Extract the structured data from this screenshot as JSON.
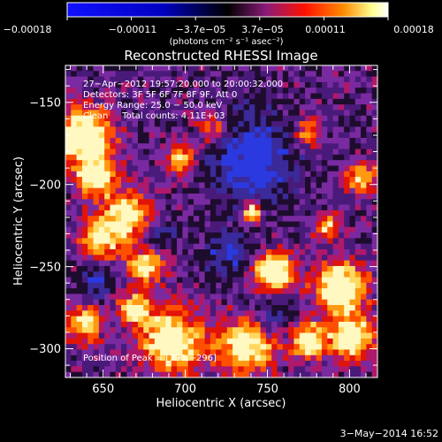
{
  "colorbar": {
    "tick_labels": [
      "−0.00018",
      "−0.00011",
      "−3.7e−05",
      "3.7e−05",
      "0.00011",
      "0.00018"
    ],
    "units_label": "(photons cm⁻² s⁻¹ asec⁻²)"
  },
  "plot": {
    "title": "Reconstructed RHESSI Image",
    "xlabel": "Heliocentric X (arcsec)",
    "ylabel": "Heliocentric Y (arcsec)",
    "x_ticks": [
      "650",
      "700",
      "750",
      "800"
    ],
    "y_ticks": [
      "−150",
      "−200",
      "−250",
      "−300"
    ],
    "xlim": [
      627,
      817
    ],
    "ylim": [
      -320,
      -130
    ]
  },
  "annotations": {
    "line1": "27−Apr−2012 19:57:20.000 to 20:00:32.000",
    "line2": "Detectors: 3F 5F 6F 7F 8F 9F, Att 0",
    "line3": "Energy Range: 25.0 − 50.0 keV",
    "line4": "Clean     Total counts: 4.11E+03",
    "peak": "Position of Peak = [796,−296]"
  },
  "footer": {
    "timestamp": "3−May−2014 16:52"
  },
  "colors": {
    "background": "#000000",
    "foreground": "#ffffff",
    "colormap": [
      "#1a1aff",
      "#000000",
      "#8a1a8a",
      "#ff1a00",
      "#ff8000",
      "#ffff80",
      "#ffffff"
    ]
  }
}
